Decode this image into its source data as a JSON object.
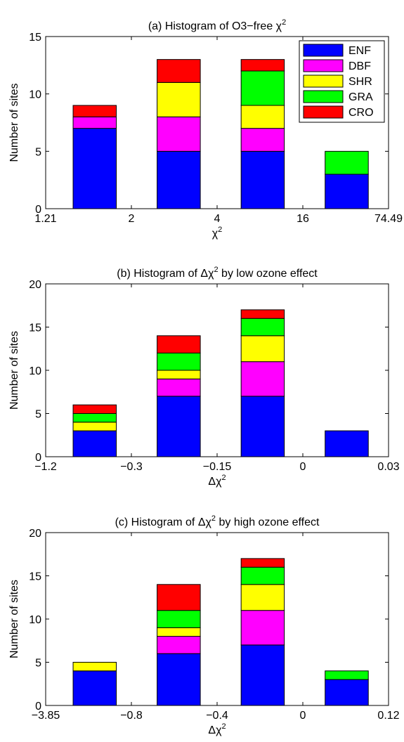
{
  "colors": {
    "ENF": "#0000ff",
    "DBF": "#ff00ff",
    "SHR": "#ffff00",
    "GRA": "#00ff00",
    "CRO": "#ff0000"
  },
  "chart_data": [
    {
      "type": "bar",
      "stacked": true,
      "title_main": "(a) Histogram of O3−free ",
      "title_symbol": "χ",
      "title_sup": "2",
      "title_tail": "",
      "ylabel": "Number of sites",
      "xlabel_main": "χ",
      "xlabel_sup": "2",
      "ylim": [
        0,
        15
      ],
      "yticks": [
        0,
        5,
        10,
        15
      ],
      "bin_edges": [
        "1.21",
        "2",
        "4",
        "16",
        "74.49"
      ],
      "grid": false,
      "legend": {
        "position": "top-right",
        "entries": [
          "ENF",
          "DBF",
          "SHR",
          "GRA",
          "CRO"
        ]
      },
      "series": [
        {
          "name": "ENF",
          "values": [
            7,
            5,
            5,
            3
          ]
        },
        {
          "name": "DBF",
          "values": [
            1,
            3,
            2,
            0
          ]
        },
        {
          "name": "SHR",
          "values": [
            0,
            3,
            2,
            0
          ]
        },
        {
          "name": "GRA",
          "values": [
            0,
            0,
            3,
            2
          ]
        },
        {
          "name": "CRO",
          "values": [
            1,
            2,
            1,
            0
          ]
        }
      ]
    },
    {
      "type": "bar",
      "stacked": true,
      "title_main": "(b) Histogram of ",
      "title_symbol": "Δχ",
      "title_sup": "2",
      "title_tail": " by low ozone effect",
      "ylabel": "Number of sites",
      "xlabel_main": "Δχ",
      "xlabel_sup": "2",
      "ylim": [
        0,
        20
      ],
      "yticks": [
        0,
        5,
        10,
        15,
        20
      ],
      "bin_edges": [
        "−1.2",
        "−0.3",
        "−0.15",
        "0",
        "0.03"
      ],
      "grid": false,
      "series": [
        {
          "name": "ENF",
          "values": [
            3,
            7,
            7,
            3
          ]
        },
        {
          "name": "DBF",
          "values": [
            0,
            2,
            4,
            0
          ]
        },
        {
          "name": "SHR",
          "values": [
            1,
            1,
            3,
            0
          ]
        },
        {
          "name": "GRA",
          "values": [
            1,
            2,
            2,
            0
          ]
        },
        {
          "name": "CRO",
          "values": [
            1,
            2,
            1,
            0
          ]
        }
      ]
    },
    {
      "type": "bar",
      "stacked": true,
      "title_main": "(c) Histogram of ",
      "title_symbol": "Δχ",
      "title_sup": "2",
      "title_tail": " by high ozone effect",
      "ylabel": "Number of sites",
      "xlabel_main": "Δχ",
      "xlabel_sup": "2",
      "ylim": [
        0,
        20
      ],
      "yticks": [
        0,
        5,
        10,
        15,
        20
      ],
      "bin_edges": [
        "−3.85",
        "−0.8",
        "−0.4",
        "0",
        "0.12"
      ],
      "grid": false,
      "series": [
        {
          "name": "ENF",
          "values": [
            4,
            6,
            7,
            3
          ]
        },
        {
          "name": "DBF",
          "values": [
            0,
            2,
            4,
            0
          ]
        },
        {
          "name": "SHR",
          "values": [
            1,
            1,
            3,
            0
          ]
        },
        {
          "name": "GRA",
          "values": [
            0,
            2,
            2,
            1
          ]
        },
        {
          "name": "CRO",
          "values": [
            0,
            3,
            1,
            0
          ]
        }
      ]
    }
  ]
}
